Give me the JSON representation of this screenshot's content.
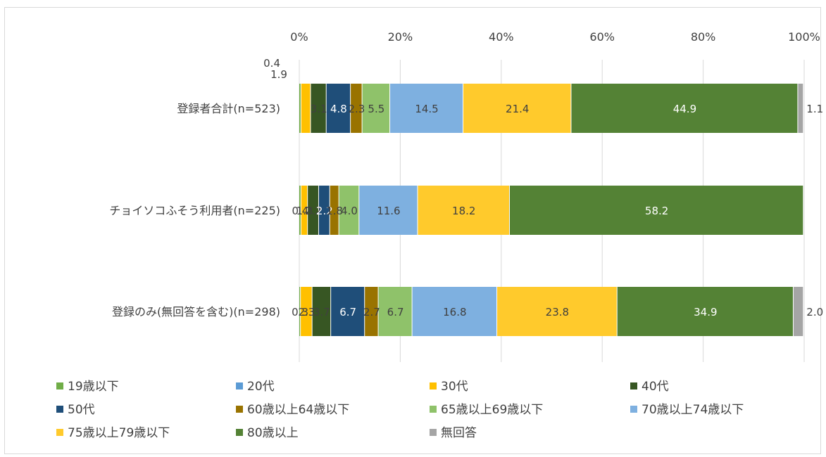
{
  "chart_data": {
    "type": "bar",
    "orientation": "horizontal",
    "stacked": "percent",
    "x_ticks": [
      "0%",
      "20%",
      "40%",
      "60%",
      "80%",
      "100%"
    ],
    "xlim": [
      0,
      100
    ],
    "grid": true,
    "legend_position": "bottom",
    "categories": [
      "登録者合計(n=523)",
      "チョイソコふそう利用者(n=225)",
      "登録のみ(無回答を含む)(n=298)"
    ],
    "series": [
      {
        "name": "19歳以下",
        "color": "#70ad47",
        "values": [
          0.4,
          0.4,
          0.3
        ],
        "labels": [
          "0.4",
          "0.4",
          "0.3"
        ]
      },
      {
        "name": "20代",
        "color": "#5b9bd5",
        "values": [
          0,
          0,
          0
        ],
        "labels": [
          "",
          "",
          ""
        ]
      },
      {
        "name": "30代",
        "color": "#ffc000",
        "values": [
          1.9,
          1.3,
          2.3
        ],
        "labels": [
          "1.9",
          "1.3",
          "2.3"
        ]
      },
      {
        "name": "40代",
        "color": "#375623",
        "values": [
          3.1,
          2.2,
          3.7
        ],
        "labels": [
          "3.1",
          "2.2",
          "3.7"
        ]
      },
      {
        "name": "50代",
        "color": "#1f4e79",
        "values": [
          4.8,
          2.2,
          6.7
        ],
        "labels": [
          "4.8",
          "2.2",
          "6.7"
        ]
      },
      {
        "name": "60歳以上64歳以下",
        "color": "#997300",
        "values": [
          2.3,
          1.8,
          2.7
        ],
        "labels": [
          "2.3",
          "1.8",
          "2.7"
        ]
      },
      {
        "name": "65歳以上69歳以下",
        "color": "#8fc26a",
        "values": [
          5.5,
          4.0,
          6.7
        ],
        "labels": [
          "5.5",
          "4.0",
          "6.7"
        ]
      },
      {
        "name": "70歳以上74歳以下",
        "color": "#7eb0e0",
        "values": [
          14.5,
          11.6,
          16.8
        ],
        "labels": [
          "14.5",
          "11.6",
          "16.8"
        ]
      },
      {
        "name": "75歳以上79歳以下",
        "color": "#ffca2c",
        "values": [
          21.4,
          18.2,
          23.8
        ],
        "labels": [
          "21.4",
          "18.2",
          "23.8"
        ]
      },
      {
        "name": "80歳以上",
        "color": "#548235",
        "values": [
          44.9,
          58.2,
          34.9
        ],
        "labels": [
          "44.9",
          "58.2",
          "34.9"
        ]
      },
      {
        "name": "無回答",
        "color": "#a5a5a5",
        "values": [
          1.1,
          0,
          2.0
        ],
        "labels": [
          "1.1",
          "",
          "2.0"
        ]
      }
    ]
  }
}
